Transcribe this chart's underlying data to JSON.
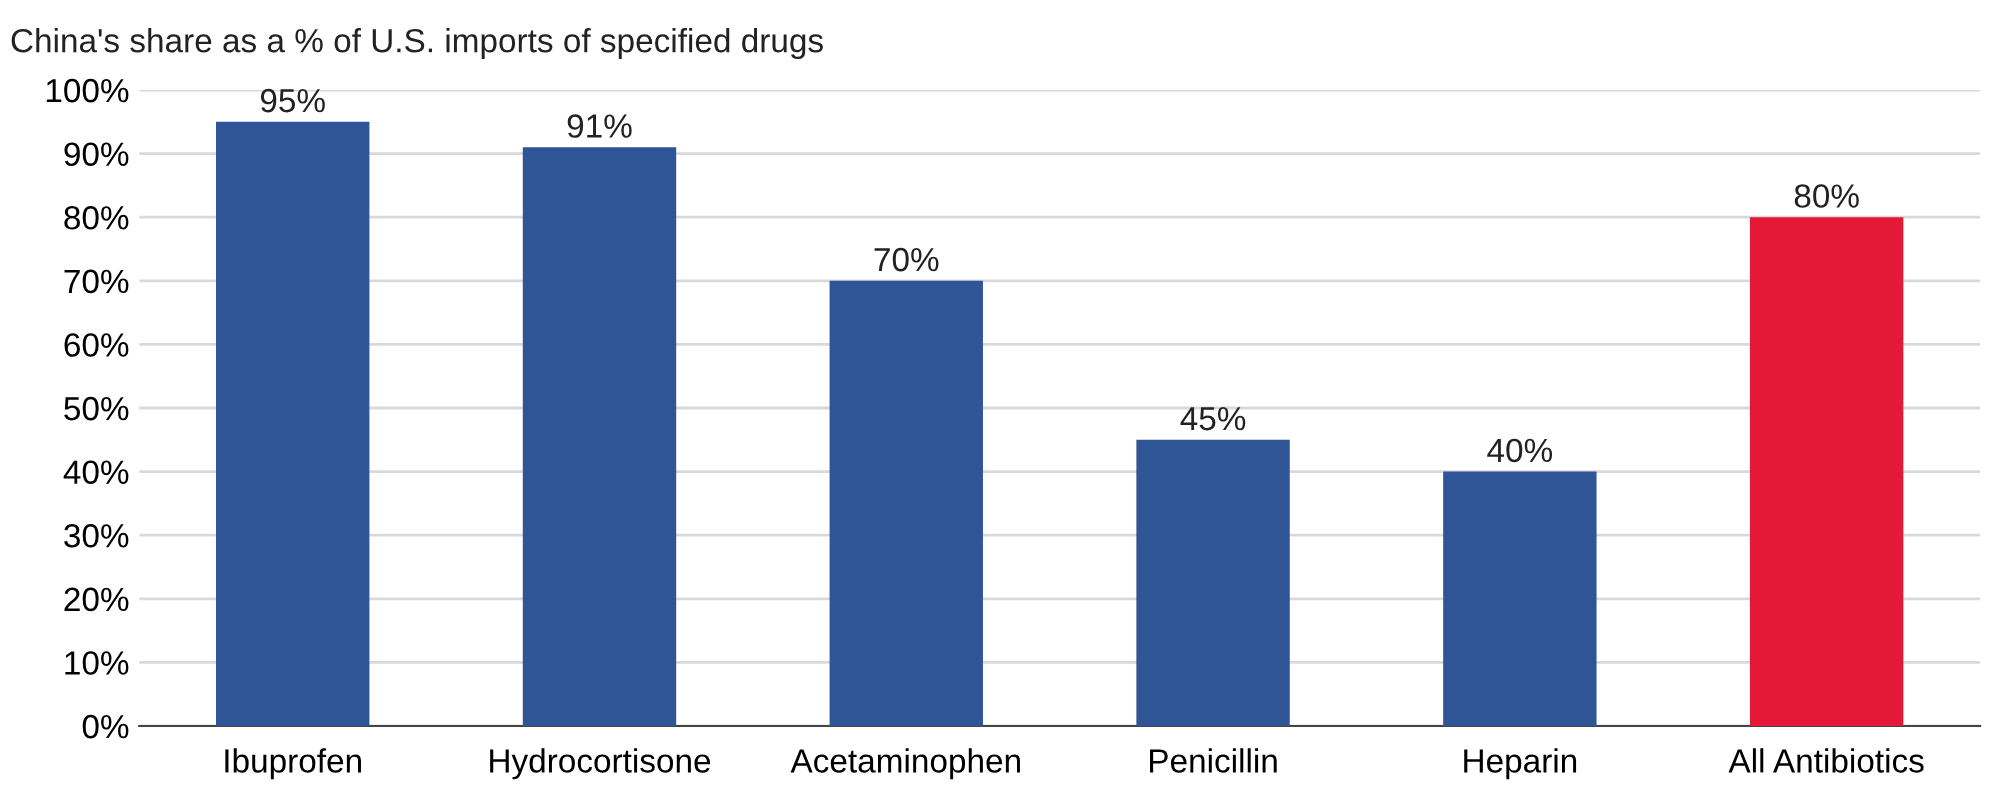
{
  "chart_data": {
    "type": "bar",
    "title": "China's share as a % of U.S. imports of specified drugs",
    "categories": [
      "Ibuprofen",
      "Hydrocortisone",
      "Acetaminophen",
      "Penicillin",
      "Heparin",
      "All Antibiotics"
    ],
    "values": [
      95,
      91,
      70,
      45,
      40,
      80
    ],
    "colors": [
      "#2f5597",
      "#2f5597",
      "#2f5597",
      "#2f5597",
      "#2f5597",
      "#e31937"
    ],
    "value_labels": [
      "95%",
      "91%",
      "70%",
      "45%",
      "40%",
      "80%"
    ],
    "ylim": [
      0,
      100
    ],
    "yticks": [
      {
        "value": 0,
        "label": "0%"
      },
      {
        "value": 10,
        "label": "10%"
      },
      {
        "value": 20,
        "label": "20%"
      },
      {
        "value": 30,
        "label": "30%"
      },
      {
        "value": 40,
        "label": "40%"
      },
      {
        "value": 50,
        "label": "50%"
      },
      {
        "value": 60,
        "label": "60%"
      },
      {
        "value": 70,
        "label": "70%"
      },
      {
        "value": 80,
        "label": "80%"
      },
      {
        "value": 90,
        "label": "90%"
      },
      {
        "value": 100,
        "label": "100%"
      }
    ],
    "grid": "y"
  }
}
